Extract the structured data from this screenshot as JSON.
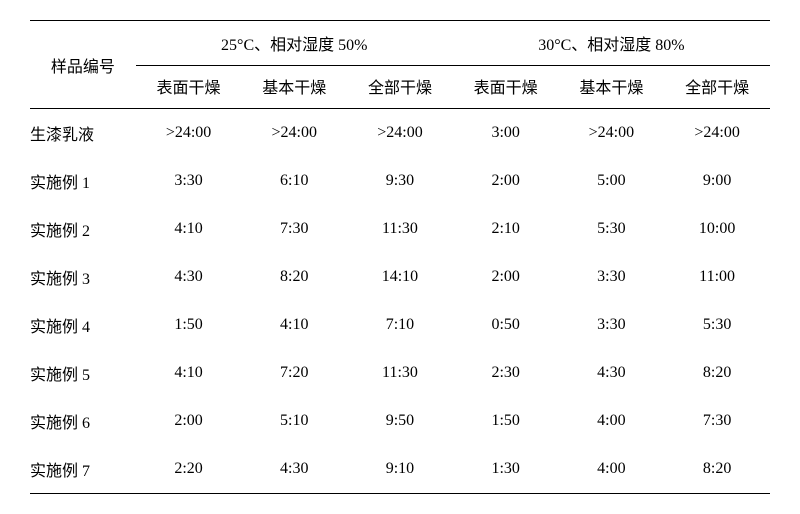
{
  "table": {
    "type": "table",
    "header_sample": "样品编号",
    "condition1": "25°C、相对湿度 50%",
    "condition2": "30°C、相对湿度 80%",
    "sub_headers": [
      "表面干燥",
      "基本干燥",
      "全部干燥",
      "表面干燥",
      "基本干燥",
      "全部干燥"
    ],
    "rows": [
      {
        "label": "生漆乳液",
        "cells": [
          ">24:00",
          ">24:00",
          ">24:00",
          "3:00",
          ">24:00",
          ">24:00"
        ]
      },
      {
        "label": "实施例 1",
        "cells": [
          "3:30",
          "6:10",
          "9:30",
          "2:00",
          "5:00",
          "9:00"
        ]
      },
      {
        "label": "实施例 2",
        "cells": [
          "4:10",
          "7:30",
          "11:30",
          "2:10",
          "5:30",
          "10:00"
        ]
      },
      {
        "label": "实施例 3",
        "cells": [
          "4:30",
          "8:20",
          "14:10",
          "2:00",
          "3:30",
          "11:00"
        ]
      },
      {
        "label": "实施例 4",
        "cells": [
          "1:50",
          "4:10",
          "7:10",
          "0:50",
          "3:30",
          "5:30"
        ]
      },
      {
        "label": "实施例 5",
        "cells": [
          "4:10",
          "7:20",
          "11:30",
          "2:30",
          "4:30",
          "8:20"
        ]
      },
      {
        "label": "实施例 6",
        "cells": [
          "2:00",
          "5:10",
          "9:50",
          "1:50",
          "4:00",
          "7:30"
        ]
      },
      {
        "label": "实施例 7",
        "cells": [
          "2:20",
          "4:30",
          "9:10",
          "1:30",
          "4:00",
          "8:20"
        ]
      }
    ],
    "font_size": 16,
    "text_color": "#000000",
    "background_color": "#ffffff",
    "border_color": "#000000",
    "column_widths": [
      "14%",
      "14%",
      "14%",
      "14%",
      "14%",
      "15%",
      "15%"
    ]
  }
}
